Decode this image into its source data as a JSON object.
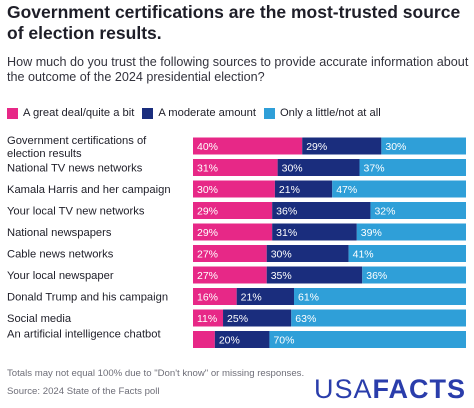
{
  "title": "Government certifications are the most-trusted source of election results.",
  "subtitle": "How much do you trust the following sources to provide accurate information about the outcome of the 2024 presidential election?",
  "footnotes": [
    "Totals may not equal 100% due to \"Don't know\" or missing responses.",
    "Source: 2024 State of the Facts poll"
  ],
  "logo": {
    "part1": "USA",
    "part2": "FACTS"
  },
  "chart_data": {
    "type": "bar",
    "orientation": "horizontal",
    "stacked": true,
    "legend_position": "top",
    "colors": {
      "great_deal": "#e72887",
      "moderate": "#1a2d7d",
      "little": "#2f9fd8"
    },
    "categories": [
      "Government certifications of election results",
      "National TV news networks",
      "Kamala Harris and her campaign",
      "Your local TV new networks",
      "National newspapers",
      "Cable news networks",
      "Your local newspaper",
      "Donald Trump and his campaign",
      "Social media",
      "An artificial intelligence chatbot"
    ],
    "series": [
      {
        "name": "A great deal/quite a bit",
        "values": [
          40,
          31,
          30,
          29,
          29,
          27,
          27,
          16,
          11,
          8
        ]
      },
      {
        "name": "A moderate amount",
        "values": [
          29,
          30,
          21,
          36,
          31,
          30,
          35,
          21,
          25,
          20
        ]
      },
      {
        "name": "Only a little/not at all",
        "values": [
          30,
          37,
          47,
          32,
          39,
          41,
          36,
          61,
          63,
          70
        ]
      }
    ],
    "label_threshold": 10,
    "xlim": [
      0,
      100
    ]
  }
}
